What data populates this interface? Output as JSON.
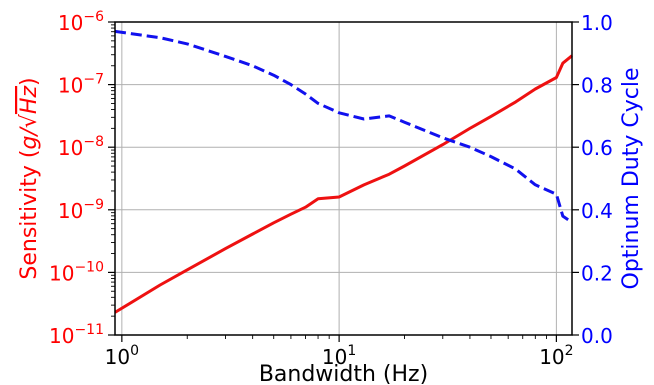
{
  "chart_data": {
    "type": "line",
    "xlabel": "Bandwidth (Hz)",
    "ylabel_left": {
      "text": "Sensitivity (",
      "unit_g": "g",
      "unit_sep": "/",
      "unit_hz": "Hz",
      "close": ")"
    },
    "ylabel_right": "Optinum Duty Cycle",
    "x_scale": "log",
    "xlim": [
      0.93,
      118
    ],
    "x_ticks": [
      {
        "value": 1,
        "base": "10",
        "exp": "0"
      },
      {
        "value": 10,
        "base": "10",
        "exp": "1"
      },
      {
        "value": 100,
        "base": "10",
        "exp": "2"
      }
    ],
    "y_left_scale": "log",
    "y_left_lim": [
      1e-11,
      1e-06
    ],
    "y_left_ticks": [
      {
        "value": 1e-11,
        "base": "10",
        "exp": "−11"
      },
      {
        "value": 1e-10,
        "base": "10",
        "exp": "−10"
      },
      {
        "value": 1e-09,
        "base": "10",
        "exp": "−9"
      },
      {
        "value": 1e-08,
        "base": "10",
        "exp": "−8"
      },
      {
        "value": 1e-07,
        "base": "10",
        "exp": "−7"
      },
      {
        "value": 1e-06,
        "base": "10",
        "exp": "−6"
      }
    ],
    "y_right_lim": [
      0.0,
      1.0
    ],
    "y_right_ticks": [
      "0.0",
      "0.2",
      "0.4",
      "0.6",
      "0.8",
      "1.0"
    ],
    "grid": true,
    "colors": {
      "left_axis": "#ff0000",
      "right_axis": "#0000ff",
      "grid": "#b0b0b0"
    },
    "series": [
      {
        "axis": "left",
        "style": "solid",
        "color": "#ee1111",
        "x": [
          0.93,
          1.5,
          2,
          3,
          4,
          5,
          6,
          7,
          8,
          10,
          13,
          17,
          20,
          30,
          40,
          50,
          65,
          80,
          100,
          107,
          118
        ],
        "y": [
          2.3e-11,
          6.3e-11,
          1.1e-10,
          2.4e-10,
          4.1e-10,
          6.2e-10,
          8.5e-10,
          1.1e-09,
          1.5e-09,
          1.6e-09,
          2.5e-09,
          3.7e-09,
          5e-09,
          1.1e-08,
          2e-08,
          3.1e-08,
          5.3e-08,
          8.5e-08,
          1.3e-07,
          2.2e-07,
          2.9e-07
        ]
      },
      {
        "axis": "right",
        "style": "dashed",
        "color": "#1111ee",
        "x": [
          0.93,
          1.5,
          2,
          3,
          4,
          5,
          6,
          7,
          8,
          10,
          13,
          17,
          20,
          30,
          40,
          50,
          65,
          80,
          100,
          107,
          118
        ],
        "y": [
          0.97,
          0.95,
          0.93,
          0.89,
          0.86,
          0.83,
          0.8,
          0.77,
          0.74,
          0.71,
          0.69,
          0.7,
          0.68,
          0.63,
          0.6,
          0.57,
          0.53,
          0.48,
          0.45,
          0.38,
          0.36
        ]
      }
    ]
  }
}
